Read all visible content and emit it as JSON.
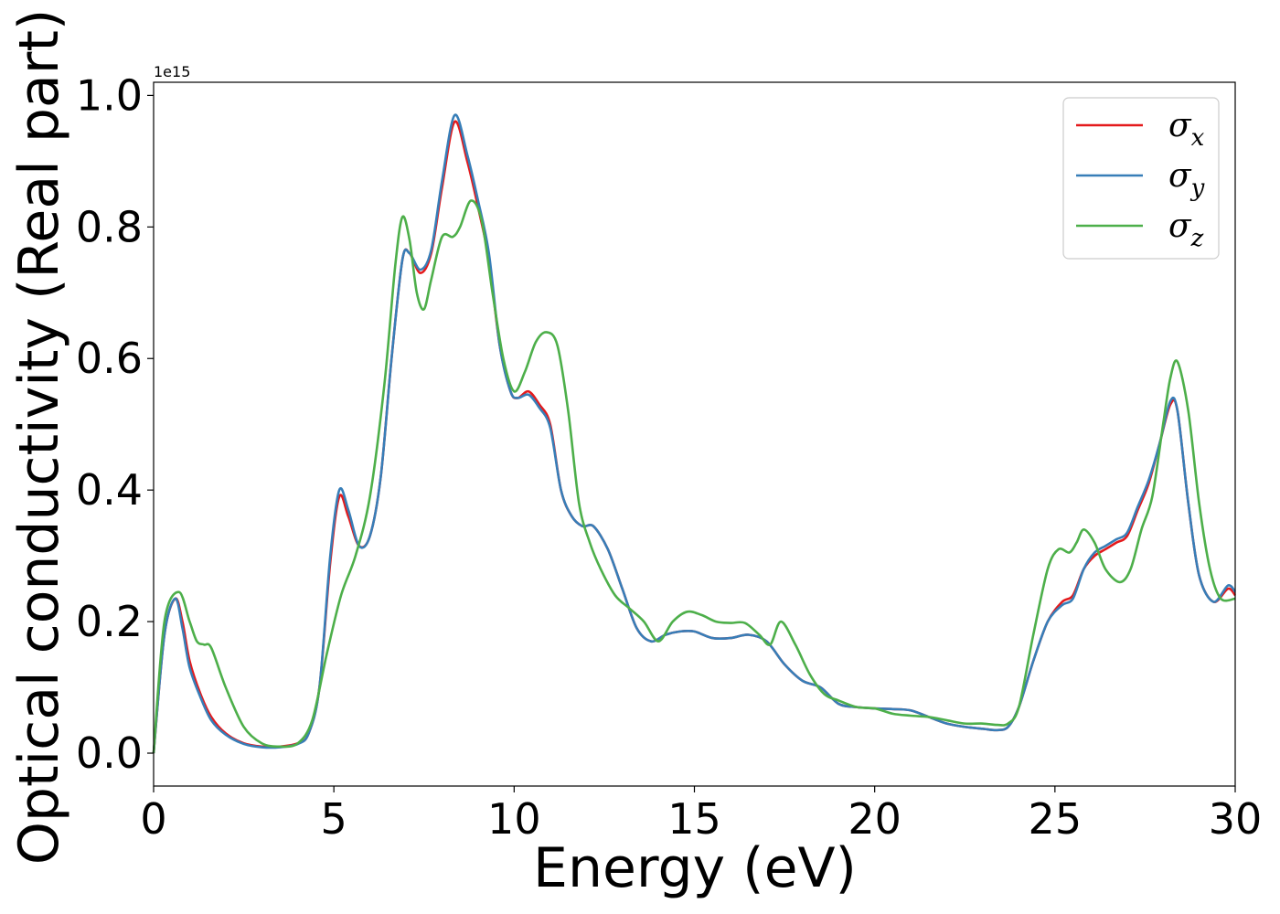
{
  "chart_data": {
    "type": "line",
    "xlabel": "Energy (eV)",
    "ylabel": "Optical conductivity (Real part)",
    "y_offset_label": "1e15",
    "xlim": [
      0,
      30
    ],
    "ylim": [
      -0.05,
      1.02
    ],
    "xticks": [
      0,
      5,
      10,
      15,
      20,
      25,
      30
    ],
    "xtick_labels": [
      "0",
      "5",
      "10",
      "15",
      "20",
      "25",
      "30"
    ],
    "yticks": [
      0.0,
      0.2,
      0.4,
      0.6,
      0.8,
      1.0
    ],
    "ytick_labels": [
      "0.0",
      "0.2",
      "0.4",
      "0.6",
      "0.8",
      "1.0"
    ],
    "grid": false,
    "legend_position": "top-right",
    "series": [
      {
        "name": "σx",
        "symbol": "σ",
        "subscript": "x",
        "color": "#e41a1c",
        "x": [
          0,
          0.3,
          0.6,
          0.8,
          1.0,
          1.3,
          1.6,
          2.0,
          2.5,
          3.0,
          3.5,
          4.0,
          4.3,
          4.6,
          4.9,
          5.15,
          5.4,
          5.7,
          6.0,
          6.3,
          6.6,
          6.9,
          7.1,
          7.4,
          7.7,
          8.0,
          8.35,
          8.7,
          9.0,
          9.3,
          9.6,
          9.9,
          10.1,
          10.4,
          10.7,
          11.0,
          11.3,
          11.6,
          11.9,
          12.2,
          12.6,
          13.0,
          13.4,
          13.8,
          14.2,
          14.6,
          15.0,
          15.5,
          16.0,
          16.5,
          17.0,
          17.5,
          18.0,
          18.5,
          19.0,
          19.5,
          20.0,
          20.5,
          21.0,
          21.5,
          22.0,
          22.5,
          23.0,
          23.4,
          23.7,
          24.0,
          24.4,
          24.8,
          25.2,
          25.5,
          25.8,
          26.1,
          26.4,
          26.7,
          27.0,
          27.3,
          27.6,
          27.9,
          28.2,
          28.4,
          28.7,
          29.0,
          29.4,
          29.8,
          30.0
        ],
        "y": [
          0.0,
          0.18,
          0.235,
          0.2,
          0.14,
          0.09,
          0.055,
          0.03,
          0.015,
          0.01,
          0.01,
          0.015,
          0.03,
          0.1,
          0.29,
          0.39,
          0.36,
          0.315,
          0.33,
          0.42,
          0.6,
          0.75,
          0.76,
          0.73,
          0.76,
          0.86,
          0.96,
          0.9,
          0.83,
          0.75,
          0.62,
          0.55,
          0.54,
          0.55,
          0.53,
          0.5,
          0.4,
          0.36,
          0.345,
          0.345,
          0.31,
          0.25,
          0.19,
          0.17,
          0.18,
          0.185,
          0.185,
          0.175,
          0.175,
          0.18,
          0.17,
          0.135,
          0.11,
          0.1,
          0.075,
          0.07,
          0.068,
          0.067,
          0.065,
          0.055,
          0.045,
          0.04,
          0.037,
          0.035,
          0.04,
          0.07,
          0.14,
          0.2,
          0.23,
          0.24,
          0.28,
          0.3,
          0.31,
          0.32,
          0.33,
          0.37,
          0.41,
          0.47,
          0.53,
          0.52,
          0.38,
          0.27,
          0.23,
          0.25,
          0.24
        ]
      },
      {
        "name": "σy",
        "symbol": "σ",
        "subscript": "y",
        "color": "#377eb8",
        "x": [
          0,
          0.3,
          0.6,
          0.8,
          1.0,
          1.3,
          1.6,
          2.0,
          2.5,
          3.0,
          3.5,
          4.0,
          4.3,
          4.6,
          4.9,
          5.15,
          5.4,
          5.7,
          6.0,
          6.3,
          6.6,
          6.9,
          7.1,
          7.4,
          7.7,
          8.0,
          8.35,
          8.7,
          9.0,
          9.3,
          9.6,
          9.9,
          10.1,
          10.4,
          10.7,
          11.0,
          11.3,
          11.6,
          11.9,
          12.2,
          12.6,
          13.0,
          13.4,
          13.8,
          14.2,
          14.6,
          15.0,
          15.5,
          16.0,
          16.5,
          17.0,
          17.5,
          18.0,
          18.5,
          19.0,
          19.5,
          20.0,
          20.5,
          21.0,
          21.5,
          22.0,
          22.5,
          23.0,
          23.4,
          23.7,
          24.0,
          24.4,
          24.8,
          25.2,
          25.5,
          25.8,
          26.1,
          26.4,
          26.7,
          27.0,
          27.3,
          27.6,
          27.9,
          28.2,
          28.4,
          28.7,
          29.0,
          29.4,
          29.8,
          30.0
        ],
        "y": [
          0.0,
          0.18,
          0.235,
          0.19,
          0.13,
          0.085,
          0.05,
          0.028,
          0.014,
          0.009,
          0.009,
          0.014,
          0.03,
          0.1,
          0.3,
          0.4,
          0.37,
          0.315,
          0.33,
          0.42,
          0.6,
          0.75,
          0.76,
          0.735,
          0.765,
          0.87,
          0.97,
          0.91,
          0.84,
          0.76,
          0.62,
          0.55,
          0.54,
          0.545,
          0.525,
          0.495,
          0.4,
          0.36,
          0.345,
          0.345,
          0.31,
          0.25,
          0.19,
          0.17,
          0.18,
          0.185,
          0.185,
          0.175,
          0.175,
          0.18,
          0.17,
          0.135,
          0.11,
          0.1,
          0.075,
          0.07,
          0.068,
          0.067,
          0.065,
          0.055,
          0.045,
          0.04,
          0.037,
          0.035,
          0.04,
          0.07,
          0.14,
          0.2,
          0.225,
          0.235,
          0.28,
          0.305,
          0.315,
          0.325,
          0.335,
          0.375,
          0.415,
          0.47,
          0.535,
          0.52,
          0.38,
          0.27,
          0.23,
          0.255,
          0.245
        ]
      },
      {
        "name": "σz",
        "symbol": "σ",
        "subscript": "z",
        "color": "#4daf4a",
        "x": [
          0,
          0.3,
          0.7,
          1.0,
          1.2,
          1.4,
          1.6,
          2.0,
          2.5,
          3.0,
          3.5,
          4.0,
          4.4,
          4.8,
          5.2,
          5.6,
          6.0,
          6.4,
          6.7,
          6.9,
          7.1,
          7.3,
          7.5,
          7.7,
          8.0,
          8.3,
          8.5,
          8.8,
          9.1,
          9.4,
          9.7,
          10.0,
          10.3,
          10.6,
          10.9,
          11.2,
          11.5,
          11.8,
          12.1,
          12.4,
          12.8,
          13.2,
          13.6,
          14.0,
          14.4,
          14.8,
          15.2,
          15.6,
          16.0,
          16.4,
          16.8,
          17.1,
          17.4,
          17.8,
          18.2,
          18.6,
          19.0,
          19.5,
          20.0,
          20.5,
          21.0,
          21.5,
          22.0,
          22.5,
          23.0,
          23.4,
          23.7,
          24.0,
          24.4,
          24.8,
          25.1,
          25.4,
          25.6,
          25.8,
          26.1,
          26.4,
          26.8,
          27.1,
          27.4,
          27.7,
          28.0,
          28.2,
          28.4,
          28.7,
          29.0,
          29.3,
          29.6,
          30.0
        ],
        "y": [
          0.0,
          0.2,
          0.245,
          0.2,
          0.17,
          0.165,
          0.16,
          0.1,
          0.04,
          0.015,
          0.01,
          0.015,
          0.05,
          0.15,
          0.24,
          0.3,
          0.39,
          0.56,
          0.74,
          0.815,
          0.78,
          0.7,
          0.675,
          0.72,
          0.785,
          0.785,
          0.8,
          0.84,
          0.81,
          0.7,
          0.6,
          0.55,
          0.58,
          0.625,
          0.64,
          0.62,
          0.52,
          0.38,
          0.32,
          0.28,
          0.24,
          0.22,
          0.2,
          0.17,
          0.2,
          0.215,
          0.21,
          0.2,
          0.198,
          0.198,
          0.18,
          0.165,
          0.2,
          0.165,
          0.12,
          0.09,
          0.08,
          0.07,
          0.068,
          0.06,
          0.057,
          0.055,
          0.05,
          0.045,
          0.045,
          0.043,
          0.045,
          0.07,
          0.18,
          0.28,
          0.31,
          0.305,
          0.32,
          0.34,
          0.32,
          0.28,
          0.26,
          0.28,
          0.34,
          0.39,
          0.5,
          0.57,
          0.595,
          0.52,
          0.38,
          0.28,
          0.235,
          0.235
        ]
      }
    ]
  }
}
